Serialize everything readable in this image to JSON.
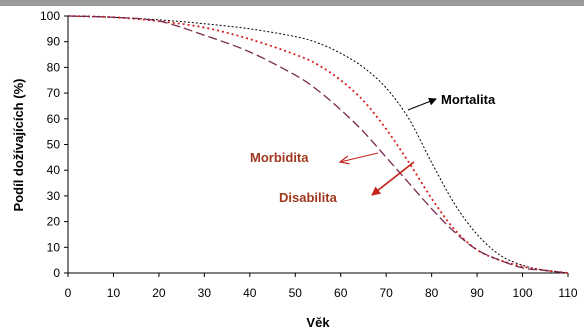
{
  "chart_data": {
    "type": "line",
    "title": "",
    "xlabel": "Věk",
    "ylabel": "Podíl dožívajících (%)",
    "xlim": [
      0,
      110
    ],
    "ylim": [
      0,
      100
    ],
    "x_ticks": [
      "0",
      "10",
      "20",
      "30",
      "40",
      "50",
      "60",
      "70",
      "80",
      "90",
      "100",
      "110"
    ],
    "y_ticks": [
      "0",
      "10",
      "20",
      "30",
      "40",
      "50",
      "60",
      "70",
      "80",
      "90",
      "100"
    ],
    "grid": false,
    "legend": "none",
    "series": [
      {
        "name": "Mortalita",
        "color": "#000000",
        "dash": "dotted",
        "x": [
          0,
          10,
          20,
          30,
          40,
          50,
          55,
          60,
          65,
          70,
          75,
          80,
          85,
          90,
          95,
          100,
          105,
          110
        ],
        "y": [
          100,
          99.5,
          98.5,
          97,
          95,
          92,
          89.5,
          85.5,
          80,
          72,
          60,
          43,
          27,
          15,
          7,
          3,
          1,
          0
        ]
      },
      {
        "name": "Morbidita",
        "color": "#d81e1e",
        "dash": "dotted",
        "x": [
          0,
          10,
          20,
          30,
          40,
          50,
          55,
          60,
          65,
          70,
          75,
          80,
          85,
          90,
          95,
          100,
          105,
          110
        ],
        "y": [
          100,
          99.5,
          98,
          95.5,
          91,
          85,
          81,
          75,
          67,
          56,
          43,
          29,
          17,
          9,
          5,
          2.5,
          1,
          0
        ]
      },
      {
        "name": "Disabilita",
        "color": "#7a2a4e",
        "dash": "dashed",
        "x": [
          0,
          10,
          20,
          30,
          40,
          50,
          55,
          60,
          65,
          70,
          75,
          80,
          85,
          90,
          95,
          100,
          105,
          110
        ],
        "y": [
          100,
          99.5,
          98,
          92.5,
          86,
          77,
          71,
          63.5,
          55,
          45,
          35,
          25,
          16,
          9,
          5,
          2,
          1,
          0
        ]
      }
    ],
    "annotations": [
      {
        "text": "Mortalita",
        "color": "#000000"
      },
      {
        "text": "Morbidita",
        "color": "#a0391f"
      },
      {
        "text": "Disabilita",
        "color": "#a0391f"
      }
    ],
    "arrow_color": "#c0241c"
  }
}
